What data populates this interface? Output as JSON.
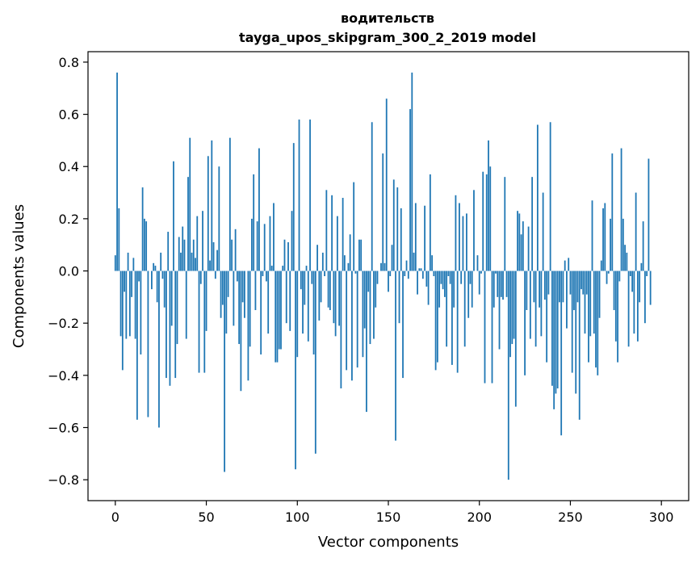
{
  "chart_data": {
    "type": "bar",
    "title_line1": "водительств",
    "title_line2": "tayga_upos_skipgram_300_2_2019 model",
    "xlabel": "Vector components",
    "ylabel": "Components values",
    "xlim": [
      -15,
      315
    ],
    "ylim": [
      -0.88,
      0.84
    ],
    "xticks": [
      0,
      50,
      100,
      150,
      200,
      250,
      300
    ],
    "xtick_labels": [
      "0",
      "50",
      "100",
      "150",
      "200",
      "250",
      "300"
    ],
    "yticks": [
      0.8,
      0.6,
      0.4,
      0.2,
      0.0,
      -0.2,
      -0.4,
      -0.6,
      -0.8
    ],
    "ytick_labels": [
      "0.8",
      "0.6",
      "0.4",
      "0.2",
      "0.0",
      "−0.2",
      "−0.4",
      "−0.6",
      "−0.8"
    ],
    "bar_color": "#1f77b4",
    "grid": false,
    "values": [
      0.06,
      0.76,
      0.24,
      -0.25,
      -0.38,
      -0.08,
      -0.26,
      0.07,
      -0.25,
      -0.1,
      0.05,
      -0.26,
      -0.57,
      -0.04,
      -0.32,
      0.32,
      0.2,
      0.19,
      -0.56,
      0.0,
      -0.07,
      0.03,
      0.02,
      -0.12,
      -0.6,
      0.07,
      -0.03,
      -0.14,
      -0.41,
      0.15,
      -0.44,
      -0.21,
      0.42,
      -0.41,
      -0.28,
      0.13,
      0.07,
      0.17,
      0.12,
      -0.26,
      0.36,
      0.51,
      0.07,
      0.12,
      0.05,
      0.21,
      -0.39,
      -0.05,
      0.23,
      -0.39,
      -0.23,
      0.44,
      0.04,
      0.5,
      0.11,
      -0.03,
      0.08,
      0.4,
      -0.18,
      -0.13,
      -0.77,
      -0.24,
      -0.1,
      0.51,
      0.12,
      -0.21,
      0.16,
      -0.04,
      -0.28,
      -0.46,
      -0.12,
      -0.18,
      0.0,
      -0.42,
      -0.29,
      0.2,
      0.37,
      -0.15,
      0.19,
      0.47,
      -0.32,
      -0.02,
      0.18,
      -0.04,
      -0.24,
      0.21,
      0.02,
      0.26,
      -0.35,
      -0.35,
      -0.3,
      -0.3,
      0.02,
      0.12,
      -0.2,
      0.11,
      -0.23,
      0.23,
      0.49,
      -0.76,
      -0.33,
      0.58,
      -0.07,
      -0.24,
      -0.13,
      0.02,
      -0.27,
      0.58,
      -0.05,
      -0.32,
      -0.7,
      0.1,
      -0.19,
      -0.12,
      0.07,
      -0.02,
      0.31,
      -0.14,
      -0.15,
      0.29,
      -0.2,
      -0.25,
      0.21,
      -0.21,
      -0.45,
      0.28,
      0.06,
      -0.38,
      0.03,
      0.14,
      -0.42,
      0.34,
      -0.01,
      -0.37,
      0.12,
      0.12,
      -0.33,
      -0.22,
      -0.54,
      -0.08,
      -0.28,
      0.57,
      -0.26,
      -0.14,
      -0.05,
      0.0,
      0.03,
      0.45,
      0.03,
      0.66,
      -0.08,
      -0.02,
      0.1,
      0.35,
      -0.65,
      0.32,
      -0.2,
      0.24,
      -0.41,
      -0.02,
      0.04,
      -0.03,
      0.62,
      0.76,
      0.07,
      0.26,
      -0.09,
      0.01,
      0.01,
      -0.03,
      0.25,
      -0.06,
      -0.13,
      0.37,
      0.06,
      -0.02,
      -0.38,
      -0.35,
      -0.14,
      -0.05,
      -0.07,
      -0.1,
      -0.29,
      -0.02,
      -0.05,
      -0.36,
      -0.14,
      0.29,
      -0.39,
      0.26,
      -0.05,
      0.21,
      -0.29,
      0.22,
      -0.18,
      -0.05,
      -0.14,
      0.31,
      0.0,
      0.06,
      -0.09,
      -0.01,
      0.38,
      -0.43,
      0.37,
      0.5,
      0.4,
      -0.43,
      -0.14,
      -0.01,
      -0.1,
      -0.3,
      -0.1,
      -0.11,
      0.36,
      -0.1,
      -0.8,
      -0.33,
      -0.28,
      -0.26,
      -0.52,
      0.23,
      0.22,
      0.14,
      0.19,
      -0.4,
      -0.15,
      0.17,
      -0.26,
      0.36,
      -0.12,
      -0.29,
      0.56,
      -0.14,
      -0.25,
      0.3,
      -0.11,
      -0.35,
      -0.09,
      0.57,
      -0.44,
      -0.53,
      -0.47,
      -0.45,
      -0.12,
      -0.63,
      -0.12,
      0.04,
      -0.22,
      0.05,
      -0.09,
      -0.39,
      -0.15,
      -0.47,
      -0.12,
      -0.57,
      -0.07,
      -0.09,
      -0.24,
      -0.09,
      -0.35,
      -0.25,
      0.27,
      -0.24,
      -0.37,
      -0.4,
      -0.18,
      0.04,
      0.24,
      0.26,
      -0.05,
      -0.01,
      0.2,
      0.45,
      -0.15,
      -0.27,
      -0.35,
      -0.04,
      0.47,
      0.2,
      0.1,
      0.07,
      -0.29,
      -0.02,
      -0.08,
      -0.24,
      0.3,
      -0.27,
      -0.12,
      0.03,
      0.19,
      -0.2,
      -0.02,
      0.43,
      -0.13
    ]
  }
}
